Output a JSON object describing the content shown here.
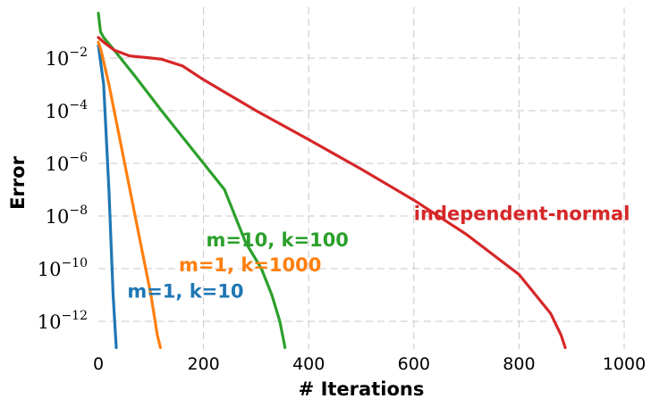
{
  "chart_data": {
    "type": "line",
    "xlabel": "# Iterations",
    "ylabel": "Error",
    "xlim": [
      0,
      1000
    ],
    "ylim": [
      1e-13,
      0.1
    ],
    "yscale": "log",
    "grid": true,
    "x_ticks": [
      "0",
      "200",
      "400",
      "600",
      "800",
      "1000"
    ],
    "y_ticks": [
      {
        "base": "10",
        "exp": "−2",
        "value": 0.01
      },
      {
        "base": "10",
        "exp": "−4",
        "value": 0.0001
      },
      {
        "base": "10",
        "exp": "−6",
        "value": 1e-06
      },
      {
        "base": "10",
        "exp": "−8",
        "value": 1e-08
      },
      {
        "base": "10",
        "exp": "−10",
        "value": 1e-10
      },
      {
        "base": "10",
        "exp": "−12",
        "value": 1e-12
      }
    ],
    "series": [
      {
        "name": "m=1, k=10",
        "color": "#1f77b4",
        "label_pos": {
          "x": 55,
          "y": 1.5e-11
        },
        "points": [
          [
            0,
            0.03
          ],
          [
            10,
            0.001
          ],
          [
            20,
            1e-07
          ],
          [
            28,
            1e-11
          ],
          [
            34,
            1e-13
          ]
        ]
      },
      {
        "name": "m=1, k=1000",
        "color": "#ff7f0e",
        "label_pos": {
          "x": 153,
          "y": 1.5e-10
        },
        "points": [
          [
            0,
            0.04
          ],
          [
            5,
            0.02
          ],
          [
            20,
            0.001
          ],
          [
            50,
            1e-06
          ],
          [
            80,
            1e-09
          ],
          [
            100,
            1e-11
          ],
          [
            112,
            3e-13
          ],
          [
            118,
            1e-13
          ]
        ]
      },
      {
        "name": "m=10, k=100",
        "color": "#2ca02c",
        "label_pos": {
          "x": 205,
          "y": 1.3e-09
        },
        "points": [
          [
            0,
            0.5
          ],
          [
            4,
            0.1
          ],
          [
            10,
            0.06
          ],
          [
            30,
            0.02
          ],
          [
            70,
            0.002
          ],
          [
            120,
            0.0001
          ],
          [
            160,
            1e-05
          ],
          [
            200,
            1e-06
          ],
          [
            240,
            1e-07
          ],
          [
            280,
            1e-09
          ],
          [
            310,
            1e-10
          ],
          [
            330,
            1e-11
          ],
          [
            345,
            1e-12
          ],
          [
            352,
            2e-13
          ],
          [
            355,
            1e-13
          ]
        ]
      },
      {
        "name": "independent-normal",
        "color": "#d62728",
        "label_pos": {
          "x": 600,
          "y": 1.3e-08
        },
        "points": [
          [
            0,
            0.06
          ],
          [
            10,
            0.04
          ],
          [
            30,
            0.02
          ],
          [
            60,
            0.012
          ],
          [
            100,
            0.01
          ],
          [
            120,
            0.009
          ],
          [
            160,
            0.005
          ],
          [
            200,
            0.0015
          ],
          [
            300,
            0.0001
          ],
          [
            400,
            8e-06
          ],
          [
            500,
            6e-07
          ],
          [
            600,
            4e-08
          ],
          [
            700,
            2e-09
          ],
          [
            800,
            6e-11
          ],
          [
            860,
            2e-12
          ],
          [
            880,
            3e-13
          ],
          [
            888,
            1e-13
          ]
        ]
      }
    ]
  }
}
